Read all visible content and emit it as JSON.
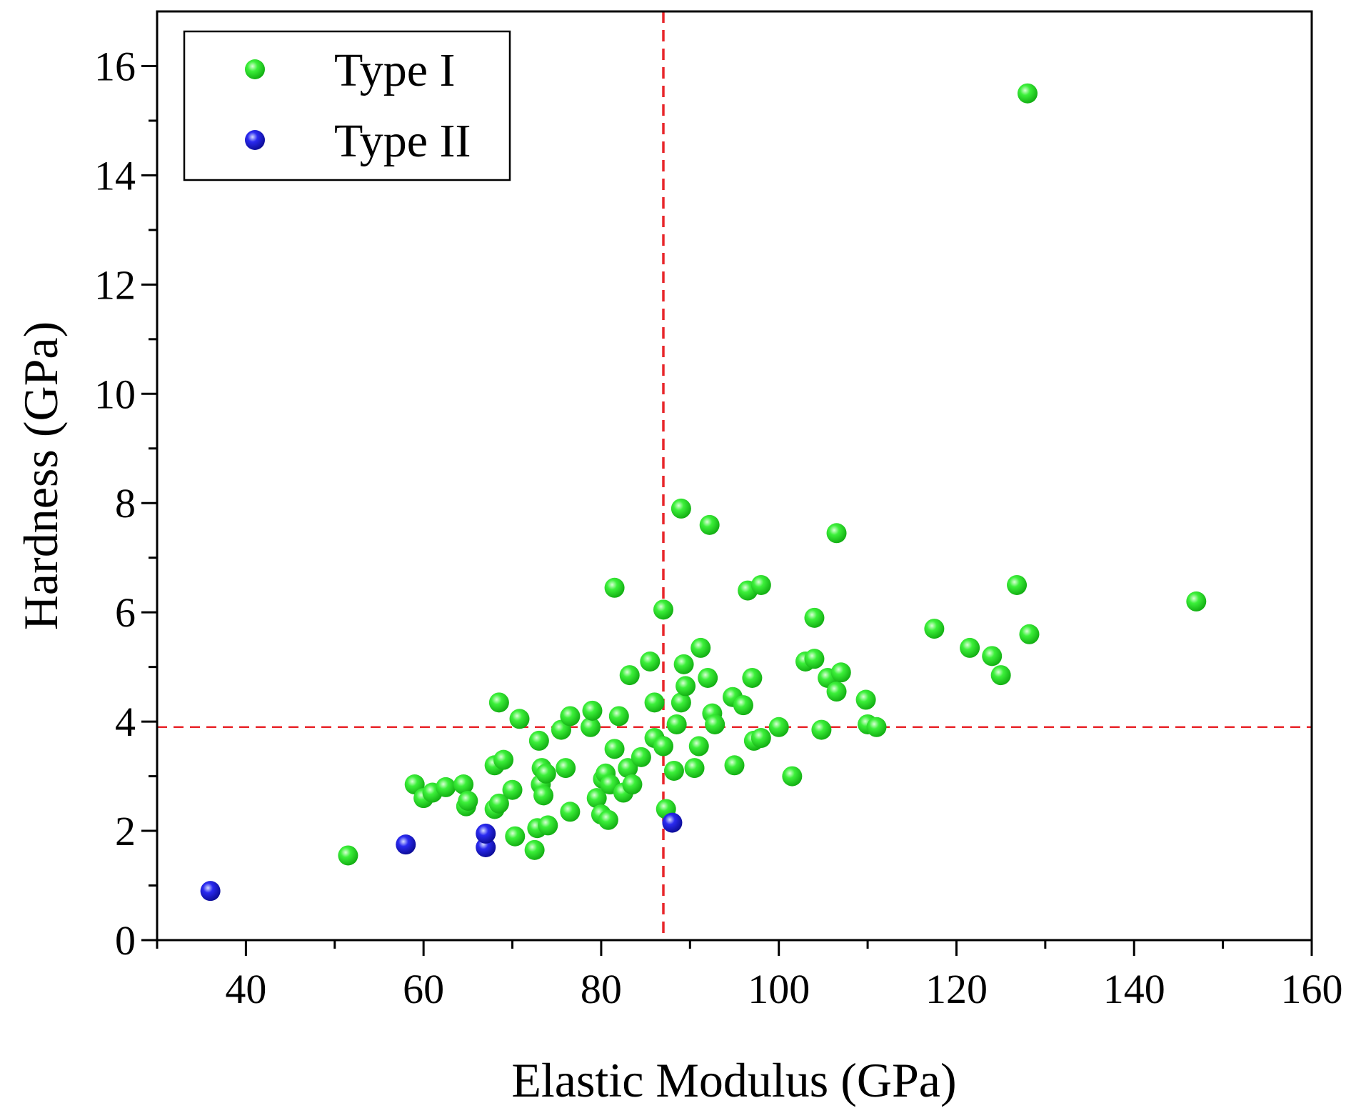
{
  "chart_data": {
    "type": "scatter",
    "title": "",
    "xlabel": "Elastic Modulus (GPa)",
    "ylabel": "Hardness (GPa)",
    "xlim": [
      30,
      160
    ],
    "ylim": [
      0,
      17
    ],
    "x_ticks": [
      40,
      60,
      80,
      100,
      120,
      140,
      160
    ],
    "y_ticks": [
      0,
      2,
      4,
      6,
      8,
      10,
      12,
      14,
      16
    ],
    "grid": false,
    "legend_position": "top-left",
    "reference_lines": [
      {
        "orientation": "vertical",
        "x": 87,
        "color": "#e8262b",
        "style": "dashed"
      },
      {
        "orientation": "horizontal",
        "y": 3.9,
        "color": "#e8262b",
        "style": "dashed"
      }
    ],
    "series": [
      {
        "name": "Type I",
        "color": "#19e61e",
        "points": [
          [
            51.5,
            1.55
          ],
          [
            59,
            2.85
          ],
          [
            60,
            2.6
          ],
          [
            61,
            2.7
          ],
          [
            62.5,
            2.8
          ],
          [
            64.5,
            2.85
          ],
          [
            64.8,
            2.45
          ],
          [
            65,
            2.55
          ],
          [
            68,
            2.4
          ],
          [
            68.5,
            2.5
          ],
          [
            68,
            3.2
          ],
          [
            69,
            3.3
          ],
          [
            68.5,
            4.35
          ],
          [
            70,
            2.75
          ],
          [
            70.3,
            1.9
          ],
          [
            70.8,
            4.05
          ],
          [
            72.5,
            1.65
          ],
          [
            72.8,
            2.05
          ],
          [
            73,
            3.65
          ],
          [
            73.2,
            2.85
          ],
          [
            73.3,
            3.15
          ],
          [
            73.5,
            2.65
          ],
          [
            73.8,
            3.05
          ],
          [
            74,
            2.1
          ],
          [
            75.5,
            3.85
          ],
          [
            76,
            3.15
          ],
          [
            76.5,
            2.35
          ],
          [
            76.5,
            4.1
          ],
          [
            78.8,
            3.9
          ],
          [
            79,
            4.2
          ],
          [
            79.5,
            2.6
          ],
          [
            80,
            2.3
          ],
          [
            80.2,
            2.95
          ],
          [
            80.5,
            3.05
          ],
          [
            80.8,
            2.2
          ],
          [
            81,
            2.85
          ],
          [
            81.5,
            3.5
          ],
          [
            81.5,
            6.45
          ],
          [
            82,
            4.1
          ],
          [
            82.5,
            2.7
          ],
          [
            83,
            3.15
          ],
          [
            83.2,
            4.85
          ],
          [
            83.5,
            2.85
          ],
          [
            84.5,
            3.35
          ],
          [
            85.5,
            5.1
          ],
          [
            86,
            3.7
          ],
          [
            86,
            4.35
          ],
          [
            87,
            3.55
          ],
          [
            87,
            6.05
          ],
          [
            87.3,
            2.4
          ],
          [
            88.2,
            3.1
          ],
          [
            88.5,
            3.95
          ],
          [
            89,
            4.35
          ],
          [
            89,
            7.9
          ],
          [
            89.3,
            5.05
          ],
          [
            89.5,
            4.65
          ],
          [
            90.5,
            3.15
          ],
          [
            91,
            3.55
          ],
          [
            91.2,
            5.35
          ],
          [
            92,
            4.8
          ],
          [
            92.2,
            7.6
          ],
          [
            92.5,
            4.15
          ],
          [
            92.8,
            3.95
          ],
          [
            94.8,
            4.45
          ],
          [
            95,
            3.2
          ],
          [
            96,
            4.3
          ],
          [
            96.5,
            6.4
          ],
          [
            97,
            4.8
          ],
          [
            97.2,
            3.65
          ],
          [
            98,
            3.7
          ],
          [
            98,
            6.5
          ],
          [
            100,
            3.9
          ],
          [
            101.5,
            3.0
          ],
          [
            103,
            5.1
          ],
          [
            104,
            5.9
          ],
          [
            104,
            5.15
          ],
          [
            104.8,
            3.85
          ],
          [
            105.5,
            4.8
          ],
          [
            106.5,
            4.55
          ],
          [
            106.5,
            7.45
          ],
          [
            107,
            4.9
          ],
          [
            109.8,
            4.4
          ],
          [
            110,
            3.95
          ],
          [
            111,
            3.9
          ],
          [
            117.5,
            5.7
          ],
          [
            121.5,
            5.35
          ],
          [
            124,
            5.2
          ],
          [
            125,
            4.85
          ],
          [
            126.8,
            6.5
          ],
          [
            128.2,
            5.6
          ],
          [
            128,
            15.5
          ],
          [
            147,
            6.2
          ]
        ]
      },
      {
        "name": "Type II",
        "color": "#1c1ce6",
        "points": [
          [
            36,
            0.9
          ],
          [
            58,
            1.75
          ],
          [
            67,
            1.7
          ],
          [
            67,
            1.95
          ],
          [
            88,
            2.15
          ]
        ]
      }
    ]
  }
}
